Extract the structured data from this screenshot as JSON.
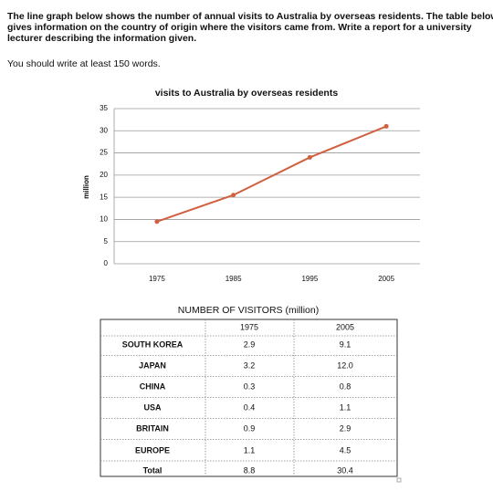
{
  "header": {
    "task": [
      "The line graph below shows the number of annual visits to Australia by overseas residents. The table below",
      "gives information on the country of origin where the visitors came from. Write a report for a university",
      "lecturer describing the information given."
    ],
    "instruction": "You should write at least 150 words."
  },
  "chart_data": {
    "type": "line",
    "title": "visits to Australia by overseas residents",
    "y_label": "million",
    "categories": [
      "1975",
      "1985",
      "1995",
      "2005"
    ],
    "values": [
      9.5,
      15.5,
      24,
      31
    ],
    "color": "#d0603f",
    "ylim": [
      0,
      35
    ],
    "yticks": [
      0,
      5,
      10,
      15,
      20,
      25,
      30,
      35
    ],
    "grid": true
  },
  "table": {
    "title": "NUMBER OF VISITORS (million)",
    "columns": [
      "1975",
      "2005"
    ],
    "rows": [
      [
        "SOUTH KOREA",
        "2.9",
        "9.1"
      ],
      [
        "JAPAN",
        "3.2",
        "12.0"
      ],
      [
        "CHINA",
        "0.3",
        "0.8"
      ],
      [
        "USA",
        "0.4",
        "1.1"
      ],
      [
        "BRITAIN",
        "0.9",
        "2.9"
      ],
      [
        "EUROPE",
        "1.1",
        "4.5"
      ],
      [
        "Total",
        "8.8",
        "30.4"
      ]
    ]
  }
}
